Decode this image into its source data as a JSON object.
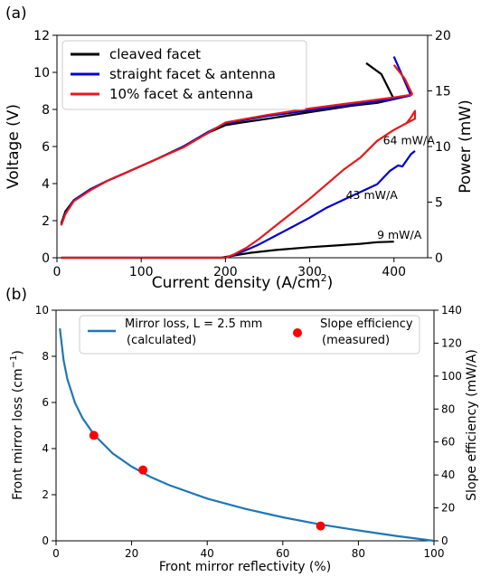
{
  "chart_data": [
    {
      "type": "line",
      "panel_label": "(a)",
      "xlabel": "Current density (A/cm",
      "xlabel_sup": "2",
      "xlabel_close": ")",
      "ylabel_left": "Voltage (V)",
      "ylabel_right": "Power (mW)",
      "xlim": [
        0,
        440
      ],
      "ylim_left": [
        0,
        12
      ],
      "ylim_right": [
        0,
        20
      ],
      "xticks": [
        0,
        100,
        200,
        300,
        400
      ],
      "yticks_left": [
        0,
        2,
        4,
        6,
        8,
        10,
        12
      ],
      "yticks_right": [
        0,
        5,
        10,
        15,
        20
      ],
      "legend_position": "top-left",
      "series": [
        {
          "name": "cleaved facet",
          "color": "#000000",
          "voltage": [
            [
              5,
              1.85
            ],
            [
              10,
              2.5
            ],
            [
              20,
              3.1
            ],
            [
              40,
              3.7
            ],
            [
              60,
              4.15
            ],
            [
              80,
              4.55
            ],
            [
              100,
              4.95
            ],
            [
              120,
              5.35
            ],
            [
              150,
              6.0
            ],
            [
              180,
              6.75
            ],
            [
              200,
              7.15
            ],
            [
              220,
              7.3
            ],
            [
              250,
              7.5
            ],
            [
              300,
              7.85
            ],
            [
              350,
              8.2
            ],
            [
              380,
              8.35
            ],
            [
              400,
              8.55
            ]
          ],
          "voltage_tail": [
            [
              400,
              8.55
            ],
            [
              385,
              9.9
            ],
            [
              367,
              10.5
            ]
          ],
          "power": [
            [
              5,
              0
            ],
            [
              195,
              0
            ],
            [
              210,
              0.2
            ],
            [
              230,
              0.45
            ],
            [
              260,
              0.7
            ],
            [
              300,
              0.95
            ],
            [
              330,
              1.1
            ],
            [
              360,
              1.25
            ],
            [
              380,
              1.4
            ],
            [
              400,
              1.45
            ]
          ],
          "annotation": "9 mW/A",
          "annotation_at": [
            380,
            1.7
          ]
        },
        {
          "name": "straight facet & antenna",
          "color": "#0000cc",
          "voltage": [
            [
              5,
              1.75
            ],
            [
              10,
              2.4
            ],
            [
              20,
              3.1
            ],
            [
              40,
              3.7
            ],
            [
              60,
              4.15
            ],
            [
              80,
              4.55
            ],
            [
              100,
              4.95
            ],
            [
              120,
              5.35
            ],
            [
              150,
              6.0
            ],
            [
              180,
              6.8
            ],
            [
              200,
              7.25
            ],
            [
              250,
              7.65
            ],
            [
              300,
              7.95
            ],
            [
              350,
              8.25
            ],
            [
              400,
              8.55
            ],
            [
              420,
              8.75
            ]
          ],
          "voltage_tail": [
            [
              420,
              8.75
            ],
            [
              412,
              9.6
            ],
            [
              400,
              10.85
            ]
          ],
          "power": [
            [
              5,
              0
            ],
            [
              200,
              0
            ],
            [
              210,
              0.25
            ],
            [
              225,
              0.7
            ],
            [
              240,
              1.2
            ],
            [
              260,
              2.0
            ],
            [
              280,
              2.8
            ],
            [
              300,
              3.6
            ],
            [
              320,
              4.5
            ],
            [
              340,
              5.2
            ],
            [
              360,
              5.9
            ],
            [
              380,
              6.6
            ],
            [
              395,
              7.8
            ],
            [
              405,
              8.3
            ],
            [
              410,
              8.2
            ],
            [
              420,
              9.3
            ],
            [
              425,
              9.6
            ]
          ],
          "annotation": "43 mW/A",
          "annotation_at": [
            343,
            5.3
          ]
        },
        {
          "name": "10% facet & antenna",
          "color": "#e41a1c",
          "voltage": [
            [
              5,
              1.75
            ],
            [
              10,
              2.35
            ],
            [
              20,
              3.05
            ],
            [
              40,
              3.65
            ],
            [
              60,
              4.15
            ],
            [
              80,
              4.55
            ],
            [
              100,
              4.95
            ],
            [
              120,
              5.35
            ],
            [
              150,
              5.95
            ],
            [
              180,
              6.75
            ],
            [
              200,
              7.3
            ],
            [
              250,
              7.7
            ],
            [
              300,
              8.05
            ],
            [
              350,
              8.35
            ],
            [
              400,
              8.65
            ],
            [
              422,
              8.8
            ]
          ],
          "voltage_tail": [
            [
              422,
              8.8
            ],
            [
              413,
              9.65
            ],
            [
              400,
              10.4
            ]
          ],
          "power": [
            [
              5,
              0
            ],
            [
              200,
              0
            ],
            [
              210,
              0.3
            ],
            [
              225,
              0.9
            ],
            [
              240,
              1.7
            ],
            [
              260,
              2.9
            ],
            [
              280,
              4.1
            ],
            [
              300,
              5.3
            ],
            [
              320,
              6.6
            ],
            [
              340,
              7.9
            ],
            [
              360,
              9.0
            ],
            [
              380,
              10.5
            ],
            [
              400,
              11.5
            ],
            [
              415,
              12.1
            ],
            [
              420,
              12.6
            ],
            [
              425,
              13.2
            ],
            [
              425,
              12.5
            ],
            [
              410,
              11.9
            ]
          ],
          "annotation": "64 mW/A",
          "annotation_at": [
            387,
            10.2
          ]
        }
      ]
    },
    {
      "type": "line",
      "panel_label": "(b)",
      "xlabel": "Front mirror reflectivity (%)",
      "ylabel_left": "Front mirror loss (cm",
      "ylabel_left_sup": "−1",
      "ylabel_left_close": ")",
      "ylabel_right": "Slope efficiency (mW/A)",
      "xlim": [
        0,
        100
      ],
      "ylim_left": [
        0,
        10
      ],
      "ylim_right": [
        0,
        140
      ],
      "xticks": [
        0,
        20,
        40,
        60,
        80,
        100
      ],
      "yticks_left": [
        0,
        2,
        4,
        6,
        8,
        10
      ],
      "yticks_right": [
        0,
        20,
        40,
        60,
        80,
        100,
        120,
        140
      ],
      "legend_position": "top",
      "series": [
        {
          "name_line1": "Mirror loss, L = 2.5 mm",
          "name_line2": "(calculated)",
          "color": "#1f77b4",
          "curve": "loss = -ln(R/100) / (2 × 0.25 cm)",
          "x": [
            1,
            2,
            3,
            5,
            7,
            10,
            15,
            20,
            25,
            30,
            40,
            50,
            60,
            70,
            80,
            90,
            100
          ],
          "y": [
            9.21,
            7.82,
            7.01,
            5.99,
            5.32,
            4.61,
            3.79,
            3.22,
            2.77,
            2.41,
            1.83,
            1.39,
            1.02,
            0.71,
            0.45,
            0.21,
            0.0
          ]
        },
        {
          "name_line1": "Slope efficiency",
          "name_line2": "(measured)",
          "color": "#ff0000",
          "x": [
            10,
            23,
            70
          ],
          "y": [
            64,
            43,
            9
          ]
        }
      ]
    }
  ]
}
